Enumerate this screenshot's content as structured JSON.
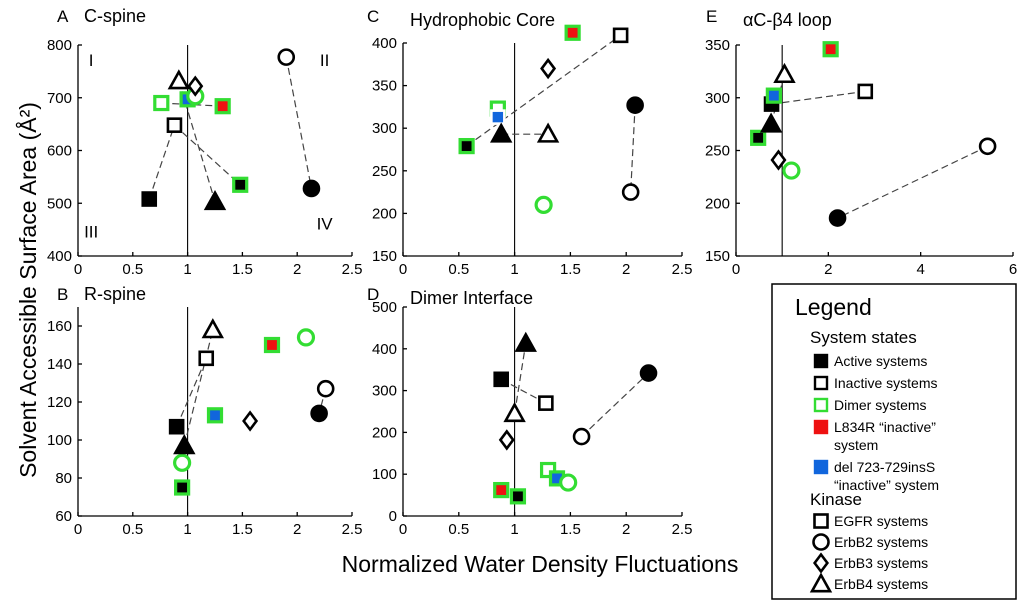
{
  "figure": {
    "xlabel": "Normalized Water Density Fluctuations",
    "ylabel": "Solvent Accessible Surface Area (Å²)"
  },
  "colors": {
    "active": "#000000",
    "inactive": "#000000",
    "dimer": "#33dd33",
    "l834r": "#ee1111",
    "del": "#1166dd"
  },
  "legend": {
    "title": "Legend",
    "states_title": "System states",
    "states": [
      {
        "label": "Active systems",
        "kind": "active"
      },
      {
        "label": "Inactive systems",
        "kind": "inactive"
      },
      {
        "label": "Dimer systems",
        "kind": "dimer"
      },
      {
        "label": "L834R “inactive”",
        "label2": "system",
        "kind": "l834r"
      },
      {
        "label": "del 723-729insS",
        "label2": "“inactive” system",
        "kind": "del"
      }
    ],
    "kinase_title": "Kinase",
    "kinases": [
      {
        "label": "EGFR systems",
        "shape": "square"
      },
      {
        "label": "ErbB2 systems",
        "shape": "circle"
      },
      {
        "label": "ErbB3 systems",
        "shape": "diamond"
      },
      {
        "label": "ErbB4 systems",
        "shape": "triangle"
      }
    ]
  },
  "chart_data": [
    {
      "panel": "A",
      "title": "C-spine",
      "type": "scatter",
      "xlim": [
        0,
        2.5
      ],
      "ylim": [
        400,
        800
      ],
      "xticks": [
        "0",
        "0.5",
        "1",
        "1.5",
        "2",
        "2.5"
      ],
      "xtick_values": [
        0,
        0.5,
        1,
        1.5,
        2,
        2.5
      ],
      "yticks": [
        "400",
        "500",
        "600",
        "700",
        "800"
      ],
      "ytick_values": [
        400,
        500,
        600,
        700,
        800
      ],
      "vline": 1,
      "quadrants": [
        {
          "label": "I",
          "x": 0.12,
          "y": 760
        },
        {
          "label": "II",
          "x": 2.25,
          "y": 760
        },
        {
          "label": "III",
          "x": 0.12,
          "y": 435
        },
        {
          "label": "IV",
          "x": 2.25,
          "y": 450
        }
      ],
      "points": [
        {
          "id": "egfr_act",
          "x": 0.65,
          "y": 508,
          "shape": "square",
          "fill": "active",
          "edge": "black"
        },
        {
          "id": "egfr_inact",
          "x": 0.88,
          "y": 648,
          "shape": "square",
          "fill": "white",
          "edge": "black"
        },
        {
          "id": "egfr_dimer",
          "x": 0.76,
          "y": 690,
          "shape": "square",
          "fill": "white",
          "edge": "dimer"
        },
        {
          "id": "egfr_dimer2",
          "x": 1.48,
          "y": 535,
          "shape": "square",
          "fill": "active",
          "edge": "dimer"
        },
        {
          "id": "egfr_l834r",
          "x": 1.32,
          "y": 684,
          "shape": "square",
          "fill": "l834r",
          "edge": "dimer"
        },
        {
          "id": "egfr_del",
          "x": 1.0,
          "y": 697,
          "shape": "square",
          "fill": "del",
          "edge": "dimer"
        },
        {
          "id": "erbb2_inact",
          "x": 1.9,
          "y": 777,
          "shape": "circle",
          "fill": "white",
          "edge": "black"
        },
        {
          "id": "erbb2_act",
          "x": 2.13,
          "y": 528,
          "shape": "circle",
          "fill": "active",
          "edge": "black"
        },
        {
          "id": "erbb2_dimer",
          "x": 1.07,
          "y": 703,
          "shape": "circle",
          "fill": "white",
          "edge": "dimer"
        },
        {
          "id": "erbb3_inact",
          "x": 1.07,
          "y": 722,
          "shape": "diamond",
          "fill": "white",
          "edge": "black"
        },
        {
          "id": "erbb4_inact",
          "x": 0.92,
          "y": 732,
          "shape": "triangle",
          "fill": "white",
          "edge": "black"
        },
        {
          "id": "erbb4_act",
          "x": 1.25,
          "y": 503,
          "shape": "triangle",
          "fill": "active",
          "edge": "black"
        }
      ],
      "links": [
        [
          "egfr_act",
          "egfr_inact"
        ],
        [
          "egfr_inact",
          "egfr_dimer2"
        ],
        [
          "egfr_dimer",
          "egfr_l834r"
        ],
        [
          "erbb4_inact",
          "erbb4_act"
        ],
        [
          "erbb2_inact",
          "erbb2_act"
        ]
      ]
    },
    {
      "panel": "C",
      "title": "Hydrophobic Core",
      "type": "scatter",
      "xlim": [
        0,
        2.5
      ],
      "ylim": [
        150,
        400
      ],
      "xticks": [
        "0",
        "0.5",
        "1",
        "1.5",
        "2",
        "2.5"
      ],
      "xtick_values": [
        0,
        0.5,
        1,
        1.5,
        2,
        2.5
      ],
      "yticks": [
        "150",
        "200",
        "250",
        "300",
        "350",
        "400"
      ],
      "ytick_values": [
        150,
        200,
        250,
        300,
        350,
        400
      ],
      "vline": 1,
      "points": [
        {
          "id": "egfr_act",
          "x": 0.57,
          "y": 279,
          "shape": "square",
          "fill": "active",
          "edge": "dimer"
        },
        {
          "id": "egfr_inact",
          "x": 1.95,
          "y": 409,
          "shape": "square",
          "fill": "white",
          "edge": "black"
        },
        {
          "id": "egfr_dimer",
          "x": 0.85,
          "y": 323,
          "shape": "square",
          "fill": "white",
          "edge": "dimer"
        },
        {
          "id": "egfr_del",
          "x": 0.85,
          "y": 313,
          "shape": "square",
          "fill": "del",
          "edge": "white"
        },
        {
          "id": "egfr_l834r",
          "x": 1.52,
          "y": 412,
          "shape": "square",
          "fill": "l834r",
          "edge": "dimer"
        },
        {
          "id": "erbb2_act",
          "x": 2.08,
          "y": 327,
          "shape": "circle",
          "fill": "active",
          "edge": "black"
        },
        {
          "id": "erbb2_inact",
          "x": 2.04,
          "y": 225,
          "shape": "circle",
          "fill": "white",
          "edge": "black"
        },
        {
          "id": "erbb2_dimer",
          "x": 1.26,
          "y": 210,
          "shape": "circle",
          "fill": "white",
          "edge": "dimer"
        },
        {
          "id": "erbb3_inact",
          "x": 1.3,
          "y": 370,
          "shape": "diamond",
          "fill": "white",
          "edge": "black"
        },
        {
          "id": "erbb4_act",
          "x": 0.88,
          "y": 293,
          "shape": "triangle",
          "fill": "active",
          "edge": "black"
        },
        {
          "id": "erbb4_inact",
          "x": 1.3,
          "y": 293,
          "shape": "triangle",
          "fill": "white",
          "edge": "black"
        }
      ],
      "links": [
        [
          "egfr_act",
          "egfr_inact"
        ],
        [
          "erbb4_act",
          "erbb4_inact"
        ],
        [
          "erbb2_act",
          "erbb2_inact"
        ]
      ]
    },
    {
      "panel": "E",
      "title": "αC-β4 loop",
      "type": "scatter",
      "xlim": [
        0,
        6
      ],
      "ylim": [
        150,
        350
      ],
      "xticks": [
        "0",
        "2",
        "4",
        "6"
      ],
      "xtick_values": [
        0,
        2,
        4,
        6
      ],
      "yticks": [
        "150",
        "200",
        "250",
        "300",
        "350"
      ],
      "ytick_values": [
        150,
        200,
        250,
        300,
        350
      ],
      "vline": 1,
      "points": [
        {
          "id": "egfr_act",
          "x": 0.77,
          "y": 294,
          "shape": "square",
          "fill": "active",
          "edge": "black"
        },
        {
          "id": "egfr_inact",
          "x": 2.8,
          "y": 306,
          "shape": "square",
          "fill": "white",
          "edge": "black"
        },
        {
          "id": "egfr_dimer",
          "x": 0.48,
          "y": 262,
          "shape": "square",
          "fill": "active",
          "edge": "dimer"
        },
        {
          "id": "egfr_del",
          "x": 0.82,
          "y": 302,
          "shape": "square",
          "fill": "del",
          "edge": "dimer"
        },
        {
          "id": "egfr_l834r",
          "x": 2.05,
          "y": 346,
          "shape": "square",
          "fill": "l834r",
          "edge": "dimer"
        },
        {
          "id": "erbb2_inact",
          "x": 5.45,
          "y": 254,
          "shape": "circle",
          "fill": "white",
          "edge": "black"
        },
        {
          "id": "erbb2_act",
          "x": 2.2,
          "y": 186,
          "shape": "circle",
          "fill": "active",
          "edge": "black"
        },
        {
          "id": "erbb2_dimer",
          "x": 1.2,
          "y": 231,
          "shape": "circle",
          "fill": "white",
          "edge": "dimer"
        },
        {
          "id": "erbb3_inact",
          "x": 0.92,
          "y": 241,
          "shape": "diamond",
          "fill": "white",
          "edge": "black"
        },
        {
          "id": "erbb4_inact",
          "x": 1.05,
          "y": 322,
          "shape": "triangle",
          "fill": "white",
          "edge": "black"
        },
        {
          "id": "erbb4_act",
          "x": 0.76,
          "y": 275,
          "shape": "triangle",
          "fill": "active",
          "edge": "black"
        }
      ],
      "links": [
        [
          "egfr_act",
          "egfr_inact"
        ],
        [
          "erbb2_inact",
          "erbb2_act"
        ],
        [
          "erbb4_act",
          "erbb4_inact"
        ]
      ]
    },
    {
      "panel": "B",
      "title": "R-spine",
      "type": "scatter",
      "xlim": [
        0,
        2.5
      ],
      "ylim": [
        60,
        170
      ],
      "xticks": [
        "0",
        "0.5",
        "1",
        "1.5",
        "2",
        "2.5"
      ],
      "xtick_values": [
        0,
        0.5,
        1,
        1.5,
        2,
        2.5
      ],
      "yticks": [
        "60",
        "80",
        "100",
        "120",
        "140",
        "160"
      ],
      "ytick_values": [
        60,
        80,
        100,
        120,
        140,
        160
      ],
      "vline": 1,
      "points": [
        {
          "id": "egfr_act",
          "x": 0.9,
          "y": 107,
          "shape": "square",
          "fill": "active",
          "edge": "black"
        },
        {
          "id": "egfr_inact",
          "x": 1.17,
          "y": 143,
          "shape": "square",
          "fill": "white",
          "edge": "black"
        },
        {
          "id": "egfr_dimer",
          "x": 0.95,
          "y": 75,
          "shape": "square",
          "fill": "active",
          "edge": "dimer"
        },
        {
          "id": "egfr_del",
          "x": 1.25,
          "y": 113,
          "shape": "square",
          "fill": "del",
          "edge": "dimer"
        },
        {
          "id": "egfr_l834r",
          "x": 1.77,
          "y": 150,
          "shape": "square",
          "fill": "l834r",
          "edge": "dimer"
        },
        {
          "id": "erbb2_dimer",
          "x": 0.95,
          "y": 88,
          "shape": "circle",
          "fill": "white",
          "edge": "dimer"
        },
        {
          "id": "erbb2_dimer2",
          "x": 2.08,
          "y": 154,
          "shape": "circle",
          "fill": "white",
          "edge": "dimer"
        },
        {
          "id": "erbb2_inact",
          "x": 2.26,
          "y": 127,
          "shape": "circle",
          "fill": "white",
          "edge": "black"
        },
        {
          "id": "erbb2_act",
          "x": 2.2,
          "y": 114,
          "shape": "circle",
          "fill": "active",
          "edge": "black"
        },
        {
          "id": "erbb3_inact",
          "x": 1.57,
          "y": 110,
          "shape": "diamond",
          "fill": "white",
          "edge": "black"
        },
        {
          "id": "erbb4_inact",
          "x": 1.23,
          "y": 158,
          "shape": "triangle",
          "fill": "white",
          "edge": "black"
        },
        {
          "id": "erbb4_act",
          "x": 0.97,
          "y": 97,
          "shape": "triangle",
          "fill": "active",
          "edge": "black"
        }
      ],
      "links": [
        [
          "egfr_act",
          "egfr_inact"
        ],
        [
          "erbb4_act",
          "erbb4_inact"
        ],
        [
          "erbb2_inact",
          "erbb2_act"
        ]
      ]
    },
    {
      "panel": "D",
      "title": "Dimer Interface",
      "type": "scatter",
      "xlim": [
        0,
        2.5
      ],
      "ylim": [
        0,
        500
      ],
      "xticks": [
        "0",
        "0.5",
        "1",
        "1.5",
        "2",
        "2.5"
      ],
      "xtick_values": [
        0,
        0.5,
        1,
        1.5,
        2,
        2.5
      ],
      "yticks": [
        "0",
        "100",
        "200",
        "300",
        "400",
        "500"
      ],
      "ytick_values": [
        0,
        100,
        200,
        300,
        400,
        500
      ],
      "vline": 1,
      "points": [
        {
          "id": "egfr_act",
          "x": 0.88,
          "y": 327,
          "shape": "square",
          "fill": "active",
          "edge": "black"
        },
        {
          "id": "egfr_inact",
          "x": 1.28,
          "y": 270,
          "shape": "square",
          "fill": "white",
          "edge": "black"
        },
        {
          "id": "egfr_l834r",
          "x": 0.88,
          "y": 62,
          "shape": "square",
          "fill": "l834r",
          "edge": "dimer"
        },
        {
          "id": "egfr_dimer",
          "x": 1.03,
          "y": 47,
          "shape": "square",
          "fill": "active",
          "edge": "dimer"
        },
        {
          "id": "egfr_dimer2",
          "x": 1.3,
          "y": 110,
          "shape": "square",
          "fill": "white",
          "edge": "dimer"
        },
        {
          "id": "egfr_del",
          "x": 1.38,
          "y": 90,
          "shape": "square",
          "fill": "del",
          "edge": "dimer"
        },
        {
          "id": "erbb2_dimer",
          "x": 1.48,
          "y": 80,
          "shape": "circle",
          "fill": "white",
          "edge": "dimer"
        },
        {
          "id": "erbb2_inact",
          "x": 1.6,
          "y": 190,
          "shape": "circle",
          "fill": "white",
          "edge": "black"
        },
        {
          "id": "erbb2_act",
          "x": 2.2,
          "y": 342,
          "shape": "circle",
          "fill": "active",
          "edge": "black"
        },
        {
          "id": "erbb3_inact",
          "x": 0.93,
          "y": 182,
          "shape": "diamond",
          "fill": "white",
          "edge": "black"
        },
        {
          "id": "erbb4_inact",
          "x": 1.0,
          "y": 245,
          "shape": "triangle",
          "fill": "white",
          "edge": "black"
        },
        {
          "id": "erbb4_act",
          "x": 1.1,
          "y": 413,
          "shape": "triangle",
          "fill": "active",
          "edge": "black"
        }
      ],
      "links": [
        [
          "egfr_act",
          "egfr_inact"
        ],
        [
          "erbb4_inact",
          "erbb4_act"
        ],
        [
          "erbb2_inact",
          "erbb2_act"
        ]
      ]
    }
  ]
}
